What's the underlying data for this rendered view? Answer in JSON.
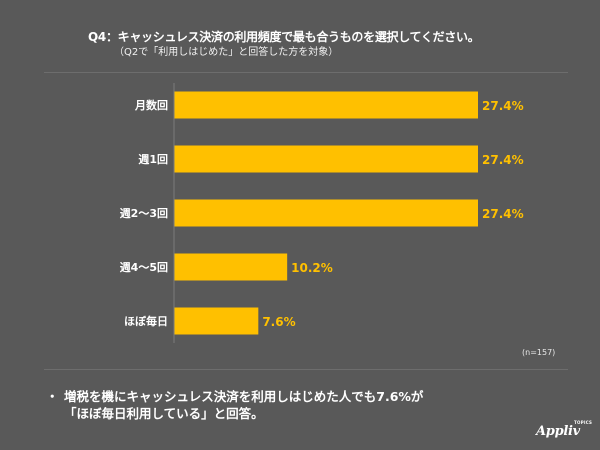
{
  "title": "Q4：キャッシュレス決済の利用頻度で最も合うものを選択してください。",
  "subtitle": "（Q2で「利用しはじめた」と回答した方を対象）",
  "sample_size": "(n=157)",
  "summary": {
    "bullet": "・",
    "line1": "増税を機にキャッシュレス決済を利用しはじめた人でも7.6%が",
    "line2": "「ほぼ毎日利用している」と回答。"
  },
  "logo": {
    "name": "Appliv",
    "badge": "TOPICS"
  },
  "colors": {
    "background": "#595959",
    "bar": "#ffc000",
    "value_label": "#ffc000",
    "text": "#ffffff"
  },
  "chart_data": {
    "type": "bar",
    "orientation": "horizontal",
    "categories": [
      "月数回",
      "週1回",
      "週2〜3回",
      "週4〜5回",
      "ほぼ毎日"
    ],
    "values": [
      27.4,
      27.4,
      27.4,
      10.2,
      7.6
    ],
    "value_labels": [
      "27.4%",
      "27.4%",
      "27.4%",
      "10.2%",
      "7.6%"
    ],
    "unit": "%",
    "xlim": [
      0,
      27.4
    ],
    "grid": false,
    "legend": "none"
  }
}
